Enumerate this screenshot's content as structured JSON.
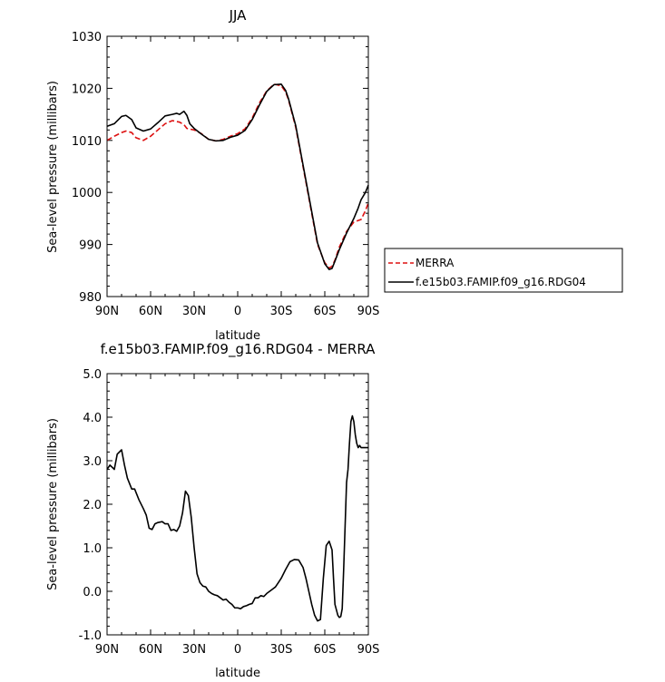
{
  "chart_data": [
    {
      "type": "line",
      "title": "JJA",
      "xlabel": "latitude",
      "ylabel": "Sea-level pressure (millibars)",
      "xlim": [
        90,
        -90
      ],
      "ylim": [
        980,
        1030
      ],
      "xticks": [
        90,
        60,
        30,
        0,
        -30,
        -60,
        -90
      ],
      "xtick_labels": [
        "90N",
        "60N",
        "30N",
        "0",
        "30S",
        "60S",
        "90S"
      ],
      "yticks": [
        980,
        990,
        1000,
        1010,
        1020,
        1030
      ],
      "ytick_labels": [
        "980",
        "990",
        "1000",
        "1010",
        "1020",
        "1030"
      ],
      "grid": false,
      "legend_placement": "outside-right",
      "series": [
        {
          "name": "MERRA",
          "color": "#dd1111",
          "dash": "dashed",
          "x": [
            90,
            85,
            80,
            77,
            73,
            70,
            65,
            60,
            55,
            50,
            45,
            40,
            37,
            35,
            30,
            25,
            20,
            15,
            10,
            5,
            0,
            -5,
            -10,
            -15,
            -20,
            -25,
            -30,
            -33,
            -35,
            -40,
            -45,
            -50,
            -55,
            -60,
            -63,
            -65,
            -67,
            -70,
            -75,
            -80,
            -85,
            -88,
            -90
          ],
          "y": [
            1010,
            1010.8,
            1011.5,
            1011.8,
            1011.5,
            1010.5,
            1010,
            1010.8,
            1012,
            1013.2,
            1013.8,
            1013.5,
            1013,
            1012.3,
            1012,
            1011.3,
            1010.2,
            1009.9,
            1010.2,
            1010.8,
            1011.3,
            1012.2,
            1014.3,
            1017.2,
            1019.5,
            1020.8,
            1020.5,
            1019.3,
            1017.8,
            1012.5,
            1005,
            997.5,
            990,
            986.5,
            985.5,
            985.8,
            987,
            989.5,
            992.5,
            994.3,
            994.8,
            996.5,
            998
          ]
        },
        {
          "name": "f.e15b03.FAMIP.f09_g16.RDG04",
          "color": "#000000",
          "dash": "solid",
          "x": [
            90,
            85,
            80,
            77,
            73,
            70,
            65,
            60,
            55,
            50,
            45,
            42,
            40,
            37,
            35,
            33,
            30,
            25,
            20,
            15,
            10,
            5,
            0,
            -5,
            -10,
            -15,
            -20,
            -25,
            -30,
            -33,
            -35,
            -40,
            -45,
            -50,
            -55,
            -60,
            -63,
            -65,
            -67,
            -70,
            -75,
            -80,
            -83,
            -85,
            -88,
            -90
          ],
          "y": [
            1012.7,
            1013.2,
            1014.6,
            1014.8,
            1014,
            1012.4,
            1011.8,
            1012.2,
            1013.4,
            1014.7,
            1015,
            1015.2,
            1015,
            1015.6,
            1014.8,
            1013.2,
            1012.3,
            1011.2,
            1010.2,
            1009.9,
            1010,
            1010.6,
            1011,
            1011.9,
            1014,
            1016.8,
            1019.4,
            1020.7,
            1020.8,
            1019.6,
            1018,
            1012.8,
            1005.3,
            997.8,
            990.3,
            986.3,
            985.2,
            985.4,
            986.8,
            989,
            992.2,
            995,
            997,
            998.6,
            1000,
            1001.4
          ]
        }
      ]
    },
    {
      "type": "line",
      "title": "f.e15b03.FAMIP.f09_g16.RDG04 - MERRA",
      "xlabel": "latitude",
      "ylabel": "Sea-level pressure (millibars)",
      "xlim": [
        90,
        -90
      ],
      "ylim": [
        -1.0,
        5.0
      ],
      "xticks": [
        90,
        60,
        30,
        0,
        -30,
        -60,
        -90
      ],
      "xtick_labels": [
        "90N",
        "60N",
        "30N",
        "0",
        "30S",
        "60S",
        "90S"
      ],
      "yticks": [
        -1,
        0,
        1,
        2,
        3,
        4,
        5
      ],
      "ytick_labels": [
        "-1.0",
        "0.0",
        "1.0",
        "2.0",
        "3.0",
        "4.0",
        "5.0"
      ],
      "grid": false,
      "series": [
        {
          "color": "#000000",
          "dash": "solid",
          "x": [
            90,
            88,
            85,
            83,
            80,
            78,
            76,
            73,
            71,
            68,
            65,
            63,
            61,
            59,
            57,
            55,
            52,
            50,
            48,
            46,
            44,
            42,
            40,
            38,
            36,
            34,
            32,
            30,
            28,
            26,
            24,
            22,
            20,
            18,
            16,
            14,
            12,
            10,
            8,
            6,
            4,
            2,
            0,
            -2,
            -4,
            -6,
            -8,
            -10,
            -12,
            -14,
            -16,
            -18,
            -20,
            -22,
            -24,
            -26,
            -28,
            -30,
            -33,
            -36,
            -39,
            -42,
            -45,
            -47,
            -49,
            -51,
            -53,
            -55,
            -57,
            -59,
            -61,
            -63,
            -65,
            -66,
            -67,
            -69,
            -70,
            -71,
            -72,
            -73,
            -74,
            -75,
            -76,
            -77,
            -78,
            -79,
            -80,
            -81,
            -82,
            -83,
            -84,
            -85,
            -86,
            -87,
            -88,
            -89,
            -90
          ],
          "y": [
            2.8,
            2.9,
            2.8,
            3.15,
            3.25,
            2.9,
            2.6,
            2.35,
            2.35,
            2.1,
            1.9,
            1.75,
            1.45,
            1.42,
            1.55,
            1.58,
            1.6,
            1.55,
            1.55,
            1.4,
            1.42,
            1.38,
            1.5,
            1.8,
            2.3,
            2.2,
            1.7,
            1.0,
            0.4,
            0.2,
            0.12,
            0.1,
            0.0,
            -0.05,
            -0.08,
            -0.1,
            -0.15,
            -0.2,
            -0.18,
            -0.25,
            -0.3,
            -0.38,
            -0.38,
            -0.4,
            -0.35,
            -0.33,
            -0.3,
            -0.28,
            -0.15,
            -0.15,
            -0.1,
            -0.12,
            -0.05,
            0.0,
            0.05,
            0.1,
            0.2,
            0.3,
            0.5,
            0.68,
            0.73,
            0.72,
            0.55,
            0.3,
            0.0,
            -0.3,
            -0.55,
            -0.68,
            -0.65,
            0.3,
            1.05,
            1.15,
            0.95,
            0.3,
            -0.3,
            -0.55,
            -0.6,
            -0.58,
            -0.4,
            0.5,
            1.5,
            2.5,
            2.8,
            3.4,
            3.9,
            4.03,
            3.9,
            3.6,
            3.4,
            3.3,
            3.35,
            3.3,
            3.3,
            3.3,
            3.3,
            3.3,
            3.3
          ]
        }
      ]
    }
  ]
}
